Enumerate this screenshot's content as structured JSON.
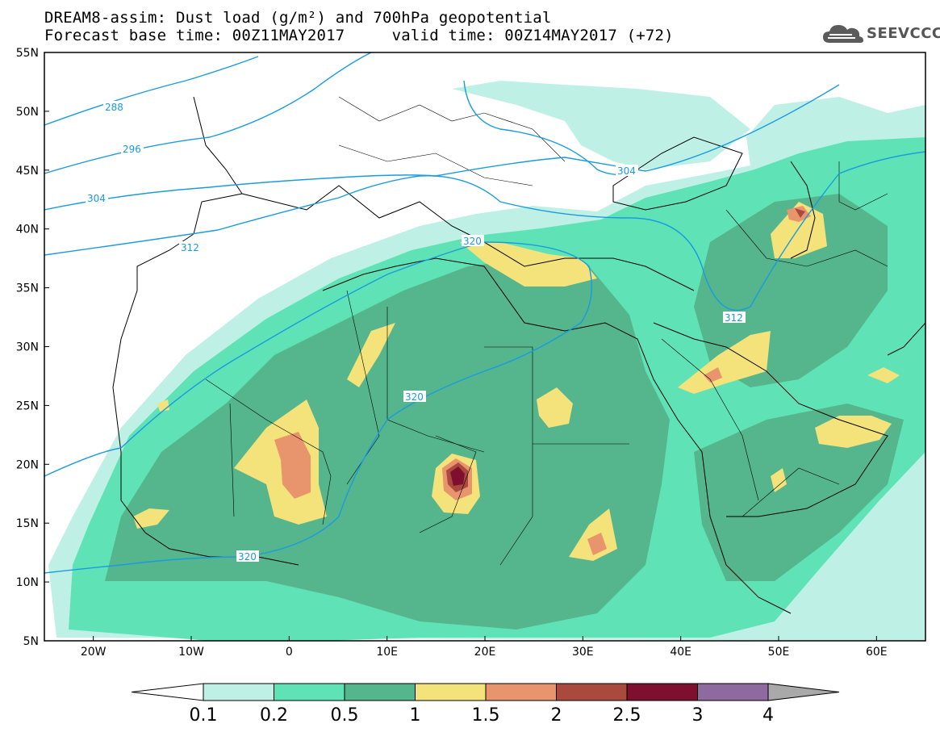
{
  "header": {
    "title_line1": "DREAM8-assim: Dust load (g/m²) and 700hPa geopotential",
    "title_line2": "Forecast base time: 00Z11MAY2017     valid time: 00Z14MAY2017 (+72)",
    "logo_text": "SEEVCCC",
    "logo_icon": "cloud-logo-icon"
  },
  "map": {
    "lon_ticks": [
      "20W",
      "10W",
      "0",
      "10E",
      "20E",
      "30E",
      "40E",
      "50E",
      "60E"
    ],
    "lat_ticks": [
      "55N",
      "50N",
      "45N",
      "40N",
      "35N",
      "30N",
      "25N",
      "20N",
      "15N",
      "10N",
      "5N"
    ],
    "lon_range": [
      -25,
      65
    ],
    "lat_range": [
      5,
      55
    ],
    "contour_labels": [
      "288",
      "296",
      "304",
      "312",
      "320",
      "320",
      "320",
      "312",
      "304"
    ],
    "contour_color": "#1a9be0"
  },
  "legend": {
    "labels": [
      "0.1",
      "0.2",
      "0.5",
      "1",
      "1.5",
      "2",
      "2.5",
      "3",
      "4"
    ],
    "colors": [
      "#bff0e6",
      "#5fe3b6",
      "#55b58c",
      "#f4e27a",
      "#e8946c",
      "#aa4a3e",
      "#7e0f2e",
      "#8e6aa0",
      "#a9a9a9"
    ]
  }
}
